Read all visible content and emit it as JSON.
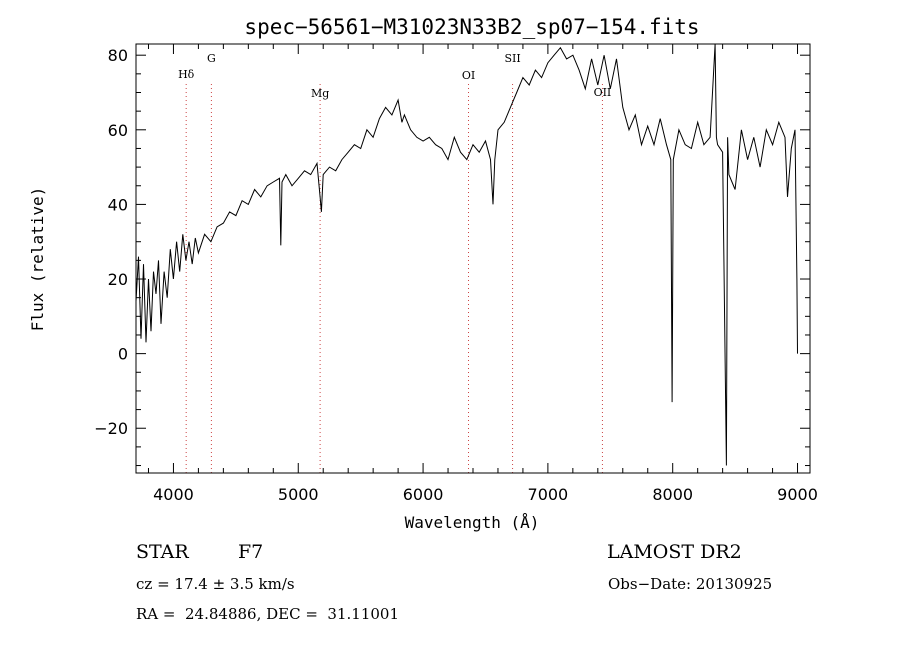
{
  "chart_data": {
    "type": "line",
    "title": "spec−56561−M31023N33B2_sp07−154.fits",
    "xlabel": "Wavelength (Å)",
    "ylabel": "Flux (relative)",
    "xlim": [
      3700,
      9100
    ],
    "ylim": [
      -32,
      83
    ],
    "xticks": [
      4000,
      5000,
      6000,
      7000,
      8000,
      9000
    ],
    "xtick_labels": [
      "4000",
      "5000",
      "6000",
      "7000",
      "8000",
      "9000"
    ],
    "yticks": [
      -20,
      0,
      20,
      40,
      60,
      80
    ],
    "ytick_labels": [
      "−20",
      "0",
      "20",
      "40",
      "60",
      "80"
    ],
    "grid": false,
    "legend": "none",
    "line_color": "#000000",
    "marker_color": "#cc4444",
    "spectrum": {
      "x": [
        3700,
        3720,
        3740,
        3760,
        3780,
        3800,
        3820,
        3840,
        3860,
        3880,
        3900,
        3925,
        3950,
        3975,
        4000,
        4025,
        4050,
        4075,
        4100,
        4125,
        4150,
        4175,
        4200,
        4250,
        4300,
        4350,
        4400,
        4450,
        4500,
        4550,
        4600,
        4650,
        4700,
        4750,
        4800,
        4850,
        4860,
        4870,
        4900,
        4950,
        5000,
        5050,
        5100,
        5150,
        5175,
        5185,
        5200,
        5250,
        5300,
        5350,
        5400,
        5450,
        5500,
        5550,
        5600,
        5650,
        5700,
        5750,
        5800,
        5830,
        5850,
        5900,
        5950,
        6000,
        6050,
        6100,
        6150,
        6200,
        6250,
        6300,
        6350,
        6400,
        6450,
        6500,
        6540,
        6560,
        6575,
        6600,
        6650,
        6700,
        6750,
        6800,
        6850,
        6900,
        6950,
        7000,
        7050,
        7100,
        7150,
        7200,
        7250,
        7300,
        7350,
        7400,
        7450,
        7500,
        7550,
        7600,
        7650,
        7700,
        7750,
        7800,
        7850,
        7900,
        7950,
        7985,
        7995,
        8005,
        8050,
        8100,
        8150,
        8200,
        8250,
        8300,
        8340,
        8350,
        8360,
        8400,
        8430,
        8440,
        8450,
        8500,
        8550,
        8600,
        8650,
        8700,
        8750,
        8800,
        8850,
        8900,
        8920,
        8950,
        8980,
        8995,
        9000
      ],
      "y": [
        14,
        26,
        4,
        24,
        3,
        20,
        6,
        22,
        16,
        25,
        8,
        22,
        15,
        28,
        20,
        30,
        22,
        32,
        25,
        30,
        24,
        31,
        27,
        32,
        30,
        34,
        35,
        38,
        37,
        41,
        40,
        44,
        42,
        45,
        46,
        47,
        29,
        46,
        48,
        45,
        47,
        49,
        48,
        51,
        42,
        38,
        48,
        50,
        49,
        52,
        54,
        56,
        55,
        60,
        58,
        63,
        66,
        64,
        68,
        62,
        64,
        60,
        58,
        57,
        58,
        56,
        55,
        52,
        58,
        54,
        52,
        56,
        54,
        57,
        52,
        40,
        52,
        60,
        62,
        66,
        70,
        74,
        72,
        76,
        74,
        78,
        80,
        82,
        79,
        80,
        76,
        71,
        79,
        72,
        80,
        71,
        79,
        66,
        60,
        64,
        56,
        61,
        56,
        63,
        56,
        52,
        -13,
        52,
        60,
        56,
        55,
        62,
        56,
        58,
        83,
        58,
        56,
        54,
        -30,
        58,
        48,
        44,
        60,
        52,
        58,
        50,
        60,
        56,
        62,
        58,
        42,
        55,
        60,
        20,
        0
      ]
    },
    "lines": [
      {
        "label": "Hδ",
        "x": 4102
      },
      {
        "label": "G",
        "x": 4304
      },
      {
        "label": "Mg",
        "x": 5175
      },
      {
        "label": "OI",
        "x": 6364
      },
      {
        "label": "SII",
        "x": 6717
      },
      {
        "label": "OII",
        "x": 7437
      }
    ]
  },
  "info": {
    "class": "STAR",
    "subclass": "F7",
    "survey": "LAMOST DR2",
    "cz": "cz = 17.4 ± 3.5 km/s",
    "obs_date": "Obs−Date: 20130925",
    "coords": "RA =  24.84886, DEC =  31.11001"
  }
}
